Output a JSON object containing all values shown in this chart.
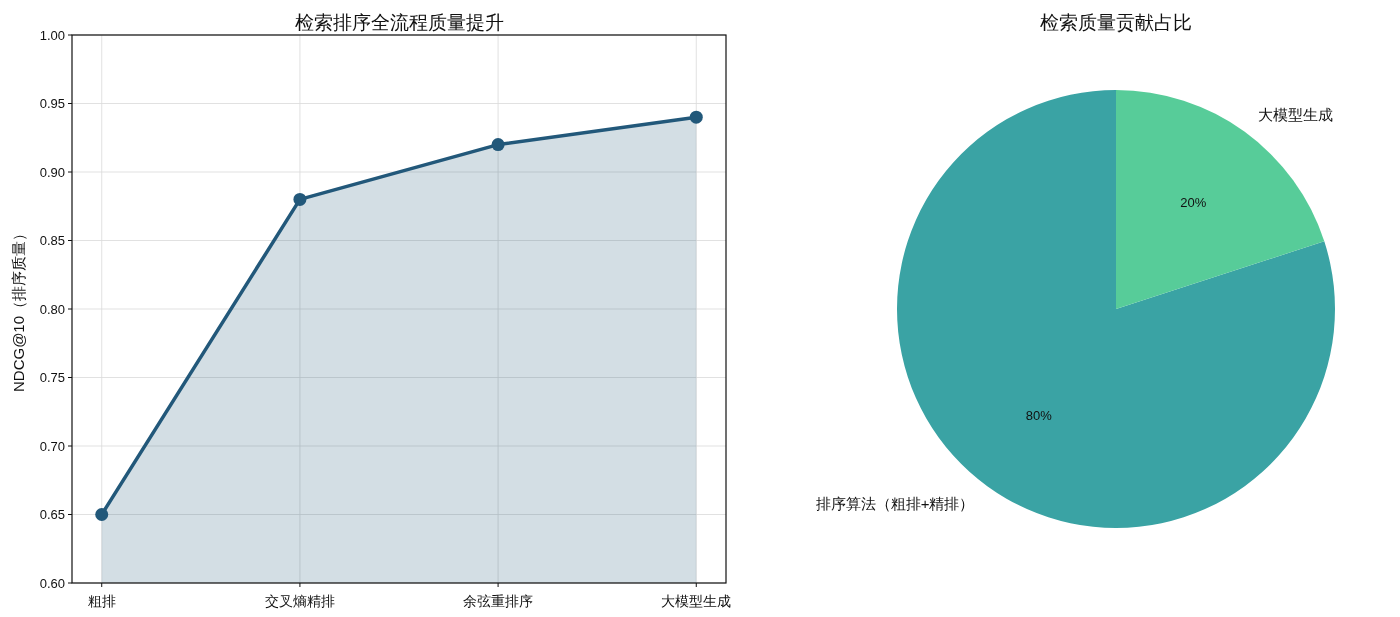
{
  "chart_data": [
    {
      "type": "area",
      "title": "检索排序全流程质量提升",
      "ylabel": "NDCG@10（排序质量）",
      "categories": [
        "粗排",
        "交叉熵精排",
        "余弦重排序",
        "大模型生成"
      ],
      "series": [
        {
          "color": "#22587a",
          "values": [
            0.65,
            0.88,
            0.92,
            0.94
          ]
        }
      ],
      "ylim": [
        0.6,
        1.0
      ],
      "yticks": [
        {
          "value": 0.6,
          "label": "0.60"
        },
        {
          "value": 0.65,
          "label": "0.65"
        },
        {
          "value": 0.7,
          "label": "0.70"
        },
        {
          "value": 0.75,
          "label": "0.75"
        },
        {
          "value": 0.8,
          "label": "0.80"
        },
        {
          "value": 0.85,
          "label": "0.85"
        },
        {
          "value": 0.9,
          "label": "0.90"
        },
        {
          "value": 0.95,
          "label": "0.95"
        },
        {
          "value": 1.0,
          "label": "1.00"
        }
      ],
      "grid": true,
      "marker": "circle",
      "line_style": "solid"
    },
    {
      "type": "pie",
      "title": "检索质量贡献占比",
      "categories": [
        "排序算法（粗排+精排）",
        "大模型生成"
      ],
      "values": [
        80,
        20
      ],
      "colors": [
        "#3aa3a4",
        "#57cc99"
      ],
      "value_labels": [
        "80%",
        "20%"
      ]
    }
  ]
}
